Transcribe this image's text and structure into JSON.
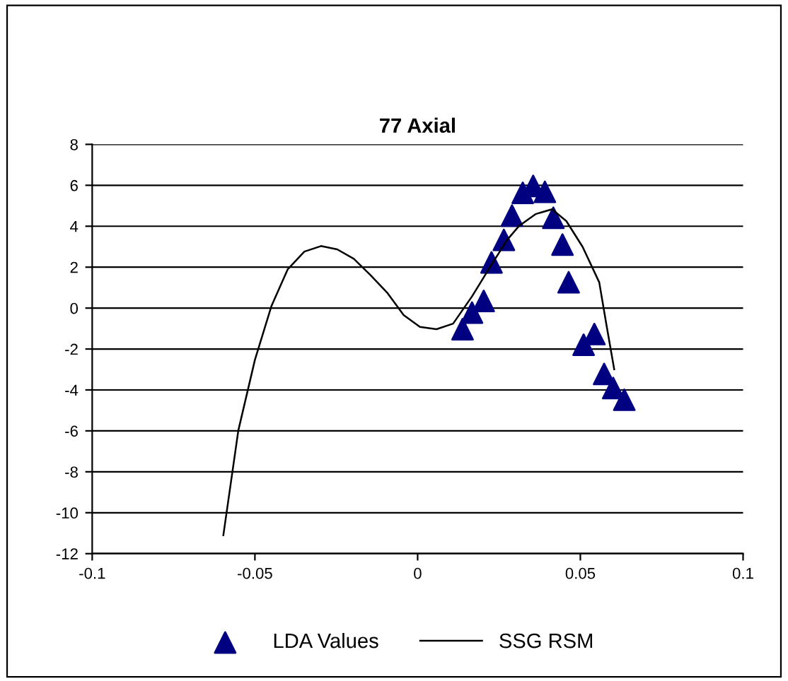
{
  "chart_data": {
    "type": "scatter",
    "title": "77 Axial",
    "xlim": [
      -0.1,
      0.1
    ],
    "xticks": [
      -0.1,
      -0.05,
      0,
      0.05,
      0.1
    ],
    "ylim": [
      -12,
      8
    ],
    "yticks": [
      -12,
      -10,
      -8,
      -6,
      -4,
      -2,
      0,
      2,
      4,
      6,
      8
    ],
    "grid": "y",
    "legend": "bottom",
    "series": [
      {
        "name": "LDA Values",
        "marker": "triangle",
        "color": "#000080",
        "x": [
          0.0138,
          0.0167,
          0.0203,
          0.0227,
          0.0265,
          0.029,
          0.0323,
          0.0355,
          0.0391,
          0.0417,
          0.0445,
          0.0464,
          0.051,
          0.0543,
          0.0573,
          0.0601,
          0.0635
        ],
        "values": [
          -1.03,
          -0.22,
          0.35,
          2.23,
          3.33,
          4.52,
          5.63,
          5.97,
          5.68,
          4.41,
          3.1,
          1.26,
          -1.79,
          -1.27,
          -3.22,
          -3.91,
          -4.48
        ]
      },
      {
        "name": "SSG RSM",
        "type": "line",
        "marker": "none",
        "line_style": "solid",
        "color": "#000000",
        "x": [
          -0.0597,
          -0.0551,
          -0.05,
          -0.0449,
          -0.0399,
          -0.0348,
          -0.0297,
          -0.0247,
          -0.0196,
          -0.0145,
          -0.0094,
          -0.0043,
          0.0007,
          0.0058,
          0.0109,
          0.0167,
          0.0225,
          0.0275,
          0.0312,
          0.0362,
          0.0413,
          0.0457,
          0.0507,
          0.0558,
          0.058,
          0.0604
        ],
        "values": [
          -11.1,
          -5.98,
          -2.53,
          0.11,
          1.9,
          2.76,
          3.03,
          2.87,
          2.41,
          1.61,
          0.76,
          -0.34,
          -0.92,
          -1.03,
          -0.76,
          0.57,
          2.07,
          3.33,
          4.02,
          4.59,
          4.83,
          4.25,
          2.99,
          1.26,
          -0.81,
          -2.99
        ]
      }
    ]
  }
}
